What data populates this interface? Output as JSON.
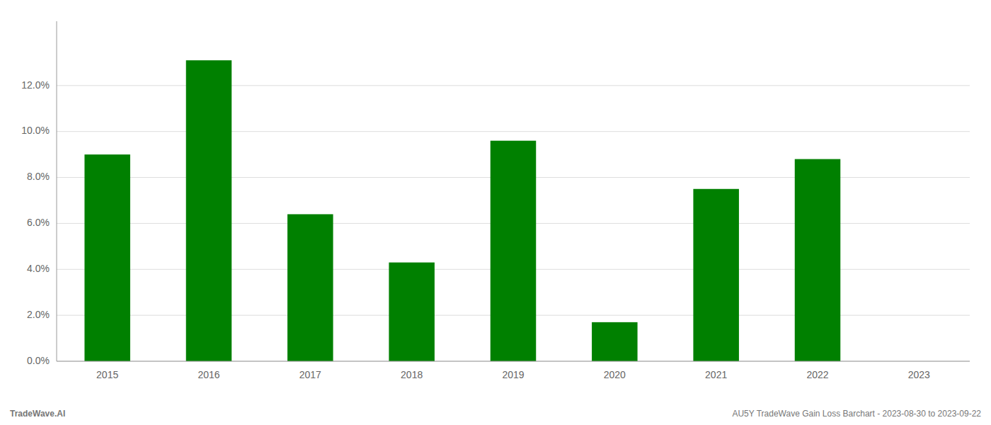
{
  "chart_data": {
    "type": "bar",
    "categories": [
      "2015",
      "2016",
      "2017",
      "2018",
      "2019",
      "2020",
      "2021",
      "2022",
      "2023"
    ],
    "values": [
      0.09,
      0.131,
      0.064,
      0.043,
      0.096,
      0.017,
      0.075,
      0.088,
      null
    ],
    "color": "#008000",
    "ylim": [
      0,
      0.148
    ],
    "yticks": [
      {
        "value": 0.0,
        "label": "0.0%"
      },
      {
        "value": 0.02,
        "label": "2.0%"
      },
      {
        "value": 0.04,
        "label": "4.0%"
      },
      {
        "value": 0.06,
        "label": "6.0%"
      },
      {
        "value": 0.08,
        "label": "8.0%"
      },
      {
        "value": 0.1,
        "label": "10.0%"
      },
      {
        "value": 0.12,
        "label": "12.0%"
      }
    ],
    "grid": true,
    "annotations": [
      "TradeWave.AI",
      "AU5Y TradeWave Gain Loss Barchart - 2023-08-30 to 2023-09-22"
    ]
  }
}
